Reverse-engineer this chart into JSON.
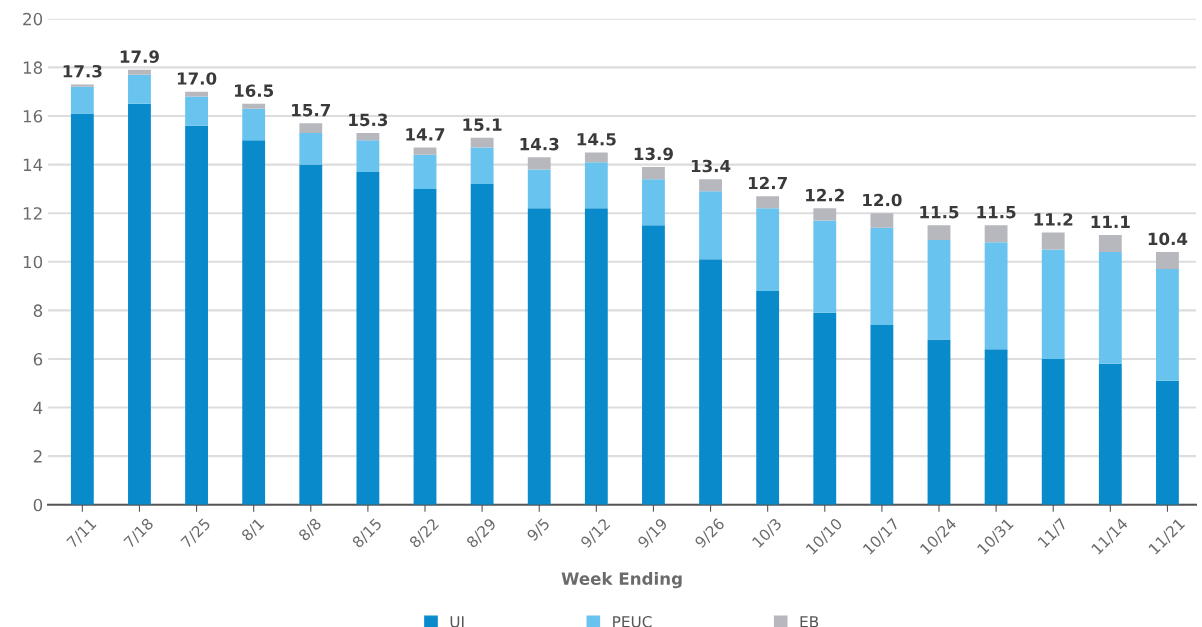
{
  "chart_data": {
    "type": "bar",
    "stacked": true,
    "xlabel": "Week Ending",
    "categories": [
      "7/11",
      "7/18",
      "7/25",
      "8/1",
      "8/8",
      "8/15",
      "8/22",
      "8/29",
      "9/5",
      "9/12",
      "9/19",
      "9/26",
      "10/3",
      "10/10",
      "10/17",
      "10/24",
      "10/31",
      "11/7",
      "11/14",
      "11/21"
    ],
    "series": [
      {
        "name": "UI",
        "color": "#098bcb",
        "values": [
          16.1,
          16.5,
          15.6,
          15.0,
          14.0,
          13.7,
          13.0,
          13.2,
          12.2,
          12.2,
          11.5,
          10.1,
          8.8,
          7.9,
          7.4,
          6.8,
          6.4,
          6.0,
          5.8,
          5.1
        ]
      },
      {
        "name": "PEUC",
        "color": "#69c3ef",
        "values": [
          1.1,
          1.2,
          1.2,
          1.3,
          1.3,
          1.3,
          1.4,
          1.5,
          1.6,
          1.9,
          1.9,
          2.8,
          3.4,
          3.8,
          4.0,
          4.1,
          4.4,
          4.5,
          4.6,
          4.6
        ]
      },
      {
        "name": "EB",
        "color": "#b7b8bd",
        "values": [
          0.1,
          0.2,
          0.2,
          0.2,
          0.4,
          0.3,
          0.3,
          0.4,
          0.5,
          0.4,
          0.5,
          0.5,
          0.5,
          0.5,
          0.6,
          0.6,
          0.7,
          0.7,
          0.7,
          0.7
        ]
      }
    ],
    "totals": [
      "17.3",
      "17.9",
      "17.0",
      "16.5",
      "15.7",
      "15.3",
      "14.7",
      "15.1",
      "14.3",
      "14.5",
      "13.9",
      "13.4",
      "12.7",
      "12.2",
      "12.0",
      "11.5",
      "11.5",
      "11.2",
      "11.1",
      "10.4"
    ],
    "ylim": [
      0,
      20
    ],
    "yticks": [
      0,
      2,
      4,
      6,
      8,
      10,
      12,
      14,
      16,
      18,
      20
    ],
    "grid": "y",
    "legend": "bottom"
  }
}
